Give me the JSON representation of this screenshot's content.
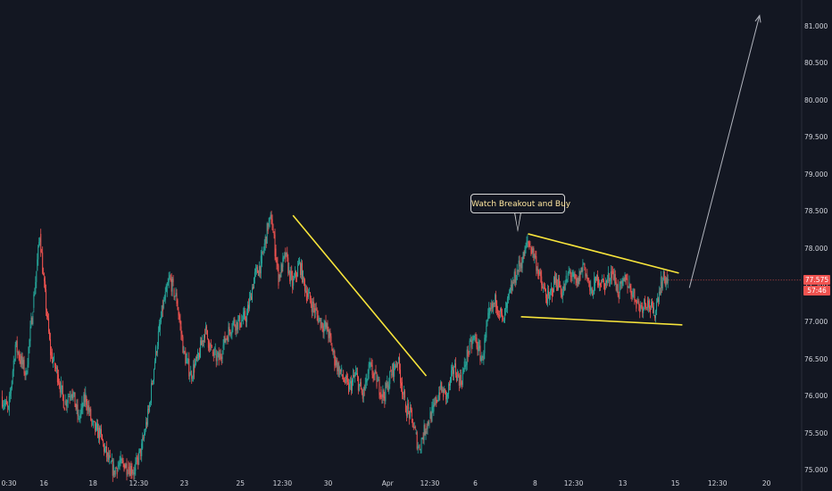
{
  "chart_data": {
    "type": "candlestick",
    "title": "",
    "xlabel": "",
    "ylabel": "",
    "ylim": [
      74.93,
      81.36
    ],
    "grid": false,
    "colors": {
      "background": "#131722",
      "up": "#26a69a",
      "down": "#ef5350",
      "trendline": "#f7e43b",
      "arrow": "#b2b5be",
      "axis_text": "#d1d4dc",
      "callout_text": "#ffe7a0"
    },
    "y_ticks": [
      "75.000",
      "75.500",
      "76.000",
      "76.500",
      "77.000",
      "77.500",
      "78.000",
      "78.500",
      "79.000",
      "79.500",
      "80.000",
      "80.500",
      "81.000"
    ],
    "x_ticks": [
      {
        "label": "0:30",
        "index": 0
      },
      {
        "label": "16",
        "index": 12
      },
      {
        "label": "18",
        "index": 26
      },
      {
        "label": "12:30",
        "index": 39
      },
      {
        "label": "23",
        "index": 52
      },
      {
        "label": "25",
        "index": 68
      },
      {
        "label": "12:30",
        "index": 80
      },
      {
        "label": "30",
        "index": 93
      },
      {
        "label": "Apr",
        "index": 110
      },
      {
        "label": "12:30",
        "index": 122
      },
      {
        "label": "6",
        "index": 135
      },
      {
        "label": "8",
        "index": 152
      },
      {
        "label": "12:30",
        "index": 163
      },
      {
        "label": "13",
        "index": 177
      },
      {
        "label": "15",
        "index": 192
      },
      {
        "label": "12:30",
        "index": 204
      },
      {
        "label": "20",
        "index": 218
      }
    ],
    "x_axis_length": 228,
    "anchors": [
      [
        0,
        76.0
      ],
      [
        2,
        75.8
      ],
      [
        4,
        76.7
      ],
      [
        7,
        76.3
      ],
      [
        9,
        77.2
      ],
      [
        11,
        78.2
      ],
      [
        12,
        77.6
      ],
      [
        14,
        76.6
      ],
      [
        16,
        76.3
      ],
      [
        18,
        75.9
      ],
      [
        20,
        76.1
      ],
      [
        22,
        75.7
      ],
      [
        24,
        76.0
      ],
      [
        26,
        75.6
      ],
      [
        28,
        75.5
      ],
      [
        30,
        75.2
      ],
      [
        32,
        75.0
      ],
      [
        34,
        75.1
      ],
      [
        36,
        75.05
      ],
      [
        38,
        75.0
      ],
      [
        40,
        75.3
      ],
      [
        42,
        75.8
      ],
      [
        44,
        76.6
      ],
      [
        46,
        77.2
      ],
      [
        48,
        77.6
      ],
      [
        50,
        77.3
      ],
      [
        52,
        76.6
      ],
      [
        54,
        76.3
      ],
      [
        56,
        76.5
      ],
      [
        58,
        76.9
      ],
      [
        60,
        76.6
      ],
      [
        62,
        76.5
      ],
      [
        64,
        76.8
      ],
      [
        66,
        77.0
      ],
      [
        68,
        77.0
      ],
      [
        70,
        77.1
      ],
      [
        72,
        77.6
      ],
      [
        74,
        77.8
      ],
      [
        76,
        78.3
      ],
      [
        77,
        78.4
      ],
      [
        79,
        77.6
      ],
      [
        81,
        77.9
      ],
      [
        83,
        77.5
      ],
      [
        85,
        77.8
      ],
      [
        87,
        77.4
      ],
      [
        89,
        77.2
      ],
      [
        91,
        77.0
      ],
      [
        93,
        76.9
      ],
      [
        95,
        76.5
      ],
      [
        97,
        76.3
      ],
      [
        99,
        76.1
      ],
      [
        101,
        76.3
      ],
      [
        103,
        76.0
      ],
      [
        105,
        76.4
      ],
      [
        107,
        76.2
      ],
      [
        109,
        76.0
      ],
      [
        111,
        76.3
      ],
      [
        113,
        76.5
      ],
      [
        115,
        75.9
      ],
      [
        117,
        75.7
      ],
      [
        119,
        75.3
      ],
      [
        121,
        75.6
      ],
      [
        123,
        75.8
      ],
      [
        125,
        76.1
      ],
      [
        127,
        76.0
      ],
      [
        129,
        76.4
      ],
      [
        131,
        76.2
      ],
      [
        133,
        76.6
      ],
      [
        135,
        76.8
      ],
      [
        137,
        76.5
      ],
      [
        139,
        77.1
      ],
      [
        141,
        77.3
      ],
      [
        143,
        77.0
      ],
      [
        145,
        77.4
      ],
      [
        147,
        77.7
      ],
      [
        149,
        77.9
      ],
      [
        150,
        78.1
      ],
      [
        152,
        77.9
      ],
      [
        154,
        77.5
      ],
      [
        156,
        77.3
      ],
      [
        158,
        77.6
      ],
      [
        160,
        77.4
      ],
      [
        162,
        77.7
      ],
      [
        164,
        77.5
      ],
      [
        166,
        77.8
      ],
      [
        168,
        77.4
      ],
      [
        170,
        77.6
      ],
      [
        172,
        77.5
      ],
      [
        174,
        77.7
      ],
      [
        176,
        77.4
      ],
      [
        178,
        77.6
      ],
      [
        180,
        77.4
      ],
      [
        182,
        77.2
      ],
      [
        184,
        77.3
      ],
      [
        186,
        77.1
      ],
      [
        188,
        77.55
      ],
      [
        189,
        77.6
      ],
      [
        190,
        77.575
      ]
    ],
    "trendlines": [
      {
        "from": [
          83,
          78.45
        ],
        "to": [
          121,
          76.28
        ]
      },
      {
        "from": [
          150,
          78.2
        ],
        "to": [
          193,
          77.67
        ]
      },
      {
        "from": [
          148,
          77.08
        ],
        "to": [
          194,
          76.97
        ]
      }
    ],
    "arrow": {
      "from": [
        196,
        77.47
      ],
      "to": [
        216,
        81.15
      ]
    },
    "annotation": "Watch Breakout  and Buy",
    "annotation_anchor": [
      150,
      78.2
    ],
    "last_price": "77.575",
    "countdown": "57:46"
  }
}
